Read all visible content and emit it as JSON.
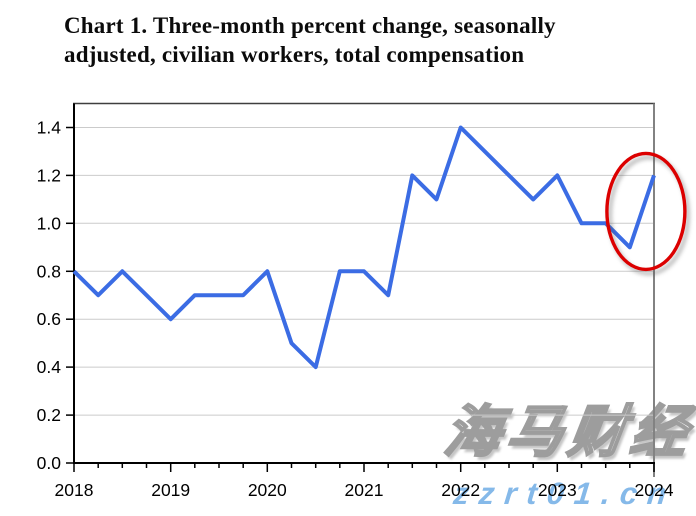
{
  "title": {
    "line1": "Chart 1. Three-month percent change, seasonally",
    "line2": "adjusted, civilian workers, total compensation"
  },
  "chart_data": {
    "type": "line",
    "title": "Chart 1. Three-month percent change, seasonally adjusted, civilian workers, total compensation",
    "x_unit": "quarter",
    "x_start": "2018 Q1",
    "x_end": "2024 Q1",
    "year_labels": [
      "2018",
      "2019",
      "2020",
      "2021",
      "2022",
      "2023",
      "2024"
    ],
    "y_ticks": [
      "0.0",
      "0.2",
      "0.4",
      "0.6",
      "0.8",
      "1.0",
      "1.2",
      "1.4"
    ],
    "ylim": [
      0,
      1.5
    ],
    "grid": true,
    "grid_color": "#cbcbcb",
    "series": [
      {
        "name": "Three-month percent change, total compensation",
        "color": "#3b6ce4",
        "values": [
          0.8,
          0.7,
          0.8,
          0.7,
          0.6,
          0.7,
          0.7,
          0.7,
          0.8,
          0.5,
          0.4,
          0.8,
          0.8,
          0.7,
          1.2,
          1.1,
          1.4,
          1.3,
          1.2,
          1.1,
          1.2,
          1.0,
          1.0,
          0.9,
          1.2
        ]
      }
    ],
    "annotation": {
      "type": "ellipse-highlight",
      "color": "#dc0000",
      "highlights": "last two points: 2023 Q4 = 0.9 and 2024 Q1 = 1.2"
    }
  },
  "watermark": {
    "line1": "海马财经",
    "line2": "zzrt01.cn",
    "line2_color": "#85b9e9"
  }
}
